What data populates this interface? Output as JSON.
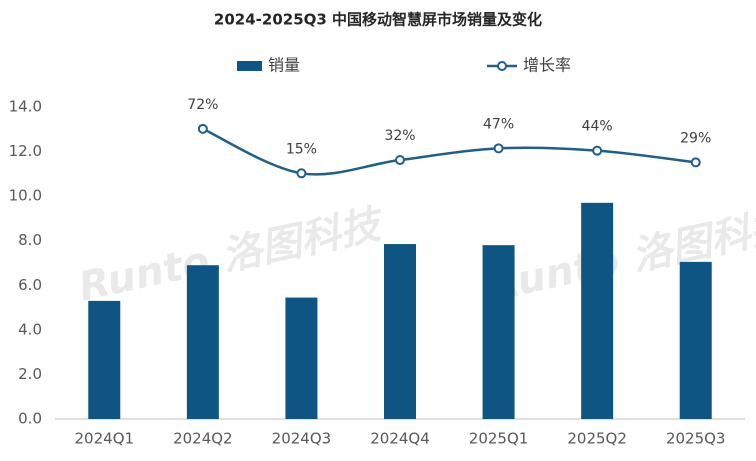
{
  "chart_data": {
    "type": "bar-line",
    "title": "2024-2025Q3 中国移动智慧屏市场销量及变化",
    "watermark": "Runto 洛图科技",
    "categories": [
      "2024Q1",
      "2024Q2",
      "2024Q3",
      "2024Q4",
      "2025Q1",
      "2025Q2",
      "2025Q3"
    ],
    "series": [
      {
        "name": "销量",
        "type": "bar",
        "color": "#0e5583",
        "values": [
          5.3,
          6.9,
          5.45,
          7.85,
          7.8,
          9.7,
          7.05
        ]
      },
      {
        "name": "增长率",
        "type": "line",
        "axis": "y2",
        "color": "#1f5f8e",
        "values": [
          null,
          72,
          15,
          32,
          47,
          44,
          29
        ],
        "value_labels": [
          null,
          "72%",
          "15%",
          "32%",
          "47%",
          "44%",
          "29%"
        ]
      }
    ],
    "ylim": [
      0,
      14
    ],
    "yticks": [
      {
        "value": 0,
        "label": "0.0"
      },
      {
        "value": 2,
        "label": "2.0"
      },
      {
        "value": 4,
        "label": "4.0"
      },
      {
        "value": 6,
        "label": "6.0"
      },
      {
        "value": 8,
        "label": "8.0"
      },
      {
        "value": 10,
        "label": "10.0"
      },
      {
        "value": 12,
        "label": "12.0"
      },
      {
        "value": 14,
        "label": "14.0"
      }
    ],
    "y2lim": [
      -300,
      100
    ],
    "grid": false
  }
}
